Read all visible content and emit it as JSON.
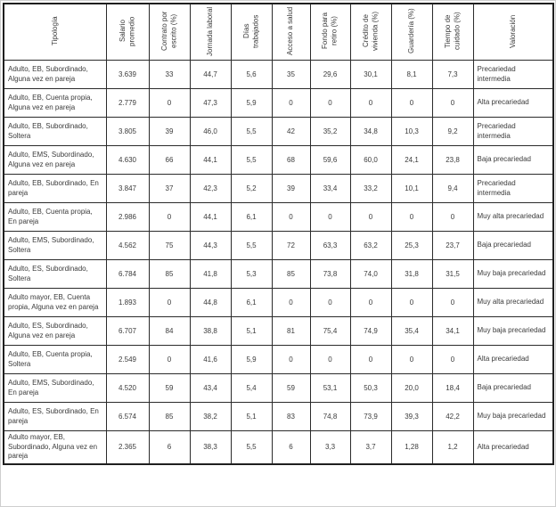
{
  "table": {
    "columns": [
      {
        "key": "tipologia",
        "label": "Tipología"
      },
      {
        "key": "salario",
        "label": "Salario promedio"
      },
      {
        "key": "contrato",
        "label": "Contrato por escrito (%)"
      },
      {
        "key": "jornada",
        "label": "Jornada laboral"
      },
      {
        "key": "dias",
        "label": "Días trabajados"
      },
      {
        "key": "acceso",
        "label": "Acceso a salud"
      },
      {
        "key": "fondo",
        "label": "Fondo para retiro (%)"
      },
      {
        "key": "credito",
        "label": "Crédito de vivienda (%)"
      },
      {
        "key": "guarderia",
        "label": "Guardería (%)"
      },
      {
        "key": "tiempo",
        "label": "Tiempo de cuidado (%)"
      },
      {
        "key": "valoracion",
        "label": "Valoración"
      }
    ],
    "rows": [
      {
        "tipologia": "Adulto, EB, Subordinado, Alguna vez en pareja",
        "salario": "3.639",
        "contrato": "33",
        "jornada": "44,7",
        "dias": "5,6",
        "acceso": "35",
        "fondo": "29,6",
        "credito": "30,1",
        "guarderia": "8,1",
        "tiempo": "7,3",
        "valoracion": "Precariedad intermedia"
      },
      {
        "tipologia": "Adulto, EB, Cuenta propia, Alguna vez en pareja",
        "salario": "2.779",
        "contrato": "0",
        "jornada": "47,3",
        "dias": "5,9",
        "acceso": "0",
        "fondo": "0",
        "credito": "0",
        "guarderia": "0",
        "tiempo": "0",
        "valoracion": "Alta precariedad"
      },
      {
        "tipologia": "Adulto, EB, Subordinado, Soltera",
        "salario": "3.805",
        "contrato": "39",
        "jornada": "46,0",
        "dias": "5,5",
        "acceso": "42",
        "fondo": "35,2",
        "credito": "34,8",
        "guarderia": "10,3",
        "tiempo": "9,2",
        "valoracion": "Precariedad intermedia"
      },
      {
        "tipologia": "Adulto, EMS, Subordinado, Alguna vez en pareja",
        "salario": "4.630",
        "contrato": "66",
        "jornada": "44,1",
        "dias": "5,5",
        "acceso": "68",
        "fondo": "59,6",
        "credito": "60,0",
        "guarderia": "24,1",
        "tiempo": "23,8",
        "valoracion": "Baja precariedad"
      },
      {
        "tipologia": "Adulto, EB, Subordinado, En pareja",
        "salario": "3.847",
        "contrato": "37",
        "jornada": "42,3",
        "dias": "5,2",
        "acceso": "39",
        "fondo": "33,4",
        "credito": "33,2",
        "guarderia": "10,1",
        "tiempo": "9,4",
        "valoracion": "Precariedad intermedia"
      },
      {
        "tipologia": "Adulto, EB, Cuenta propia, En pareja",
        "salario": "2.986",
        "contrato": "0",
        "jornada": "44,1",
        "dias": "6,1",
        "acceso": "0",
        "fondo": "0",
        "credito": "0",
        "guarderia": "0",
        "tiempo": "0",
        "valoracion": "Muy alta precariedad"
      },
      {
        "tipologia": "Adulto, EMS, Subordinado, Soltera",
        "salario": "4.562",
        "contrato": "75",
        "jornada": "44,3",
        "dias": "5,5",
        "acceso": "72",
        "fondo": "63,3",
        "credito": "63,2",
        "guarderia": "25,3",
        "tiempo": "23,7",
        "valoracion": "Baja precariedad"
      },
      {
        "tipologia": "Adulto, ES, Subordinado, Soltera",
        "salario": "6.784",
        "contrato": "85",
        "jornada": "41,8",
        "dias": "5,3",
        "acceso": "85",
        "fondo": "73,8",
        "credito": "74,0",
        "guarderia": "31,8",
        "tiempo": "31,5",
        "valoracion": "Muy baja precariedad"
      },
      {
        "tipologia": "Adulto mayor, EB, Cuenta propia, Alguna vez en pareja",
        "salario": "1.893",
        "contrato": "0",
        "jornada": "44,8",
        "dias": "6,1",
        "acceso": "0",
        "fondo": "0",
        "credito": "0",
        "guarderia": "0",
        "tiempo": "0",
        "valoracion": "Muy alta precariedad"
      },
      {
        "tipologia": "Adulto, ES, Subordinado, Alguna vez en pareja",
        "salario": "6.707",
        "contrato": "84",
        "jornada": "38,8",
        "dias": "5,1",
        "acceso": "81",
        "fondo": "75,4",
        "credito": "74,9",
        "guarderia": "35,4",
        "tiempo": "34,1",
        "valoracion": "Muy baja precariedad"
      },
      {
        "tipologia": "Adulto, EB, Cuenta propia, Soltera",
        "salario": "2.549",
        "contrato": "0",
        "jornada": "41,6",
        "dias": "5,9",
        "acceso": "0",
        "fondo": "0",
        "credito": "0",
        "guarderia": "0",
        "tiempo": "0",
        "valoracion": "Alta precariedad"
      },
      {
        "tipologia": "Adulto, EMS, Subordinado, En pareja",
        "salario": "4.520",
        "contrato": "59",
        "jornada": "43,4",
        "dias": "5,4",
        "acceso": "59",
        "fondo": "53,1",
        "credito": "50,3",
        "guarderia": "20,0",
        "tiempo": "18,4",
        "valoracion": "Baja precariedad"
      },
      {
        "tipologia": "Adulto, ES, Subordinado, En pareja",
        "salario": "6.574",
        "contrato": "85",
        "jornada": "38,2",
        "dias": "5,1",
        "acceso": "83",
        "fondo": "74,8",
        "credito": "73,9",
        "guarderia": "39,3",
        "tiempo": "42,2",
        "valoracion": "Muy baja precariedad"
      },
      {
        "tipologia": "Adulto mayor, EB, Subordinado, Alguna vez en pareja",
        "salario": "2.365",
        "contrato": "6",
        "jornada": "38,3",
        "dias": "5,5",
        "acceso": "6",
        "fondo": "3,3",
        "credito": "3,7",
        "guarderia": "1,28",
        "tiempo": "1,2",
        "valoracion": "Alta precariedad"
      }
    ]
  },
  "colors": {
    "border_outer": "#1f1f1f",
    "border_inner": "#2b2b2b",
    "text": "#3b3b3b",
    "background": "#ffffff"
  }
}
